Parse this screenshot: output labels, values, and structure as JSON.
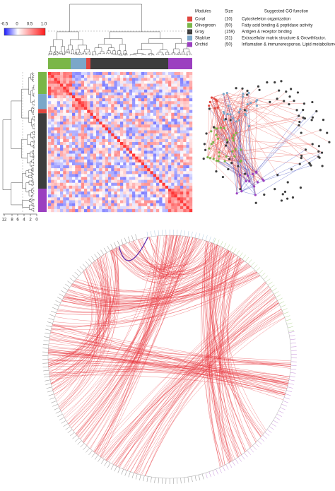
{
  "colorbar": {
    "ticks": [
      "-0.5",
      "0",
      "0.5",
      "1.0"
    ]
  },
  "legend": {
    "headers": [
      "Modules",
      "Size",
      "Suggested GO function"
    ],
    "rows": [
      {
        "name": "Coral",
        "size": "(10)",
        "function": "Cytoskeleton organization",
        "color": "#e0473f"
      },
      {
        "name": "Olivegreen",
        "size": "(50)",
        "function": "Fatty acid binding & peptidase activity",
        "color": "#7ab648"
      },
      {
        "name": "Gray",
        "size": "(159)",
        "function": "Antigen & receptor binding",
        "color": "#3d3d3d"
      },
      {
        "name": "Skyblue",
        "size": "(31)",
        "function": "Extracellular matrix structure & Growthfactor.",
        "color": "#7ba7c9"
      },
      {
        "name": "Orchid",
        "size": "(50)",
        "function": "Inflamation & immuneresponse. Lipid metabolisme.",
        "color": "#9b3fc0"
      }
    ]
  },
  "dendrogram_axis": {
    "ticks": [
      "12",
      "8",
      "6",
      "4",
      "2",
      "0"
    ]
  }
}
